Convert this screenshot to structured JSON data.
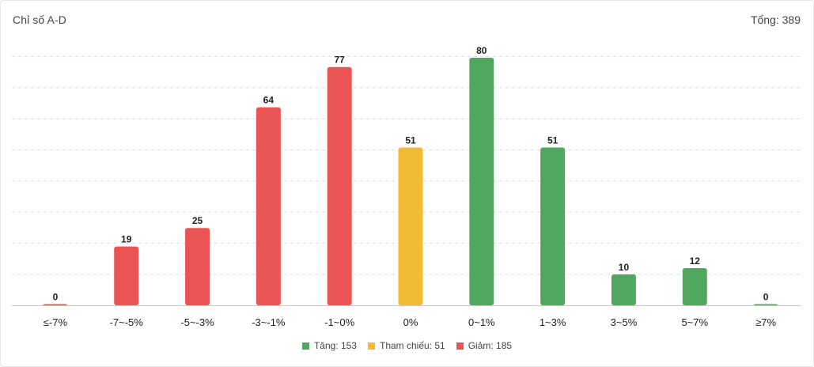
{
  "header": {
    "title": "Chỉ số A-D",
    "total": "Tổng: 389"
  },
  "colors": {
    "up": "#4fa85d",
    "reference": "#f2bb35",
    "down": "#eb5454",
    "grid": "#dedede",
    "axis": "#c8c8c8"
  },
  "legend": [
    {
      "label": "Tăng: 153",
      "color": "#4fa85d"
    },
    {
      "label": "Tham chiếu: 51",
      "color": "#f2bb35"
    },
    {
      "label": "Giảm: 185",
      "color": "#eb5454"
    }
  ],
  "chart_data": {
    "type": "bar",
    "title": "Chỉ số A-D",
    "categories": [
      "≤-7%",
      "-7~-5%",
      "-5~-3%",
      "-3~-1%",
      "-1~0%",
      "0%",
      "0~1%",
      "1~3%",
      "3~5%",
      "5~7%",
      "≥7%"
    ],
    "values": [
      0,
      19,
      25,
      64,
      77,
      51,
      80,
      51,
      10,
      12,
      0
    ],
    "bar_colors": [
      "#eb5454",
      "#eb5454",
      "#eb5454",
      "#eb5454",
      "#eb5454",
      "#f2bb35",
      "#4fa85d",
      "#4fa85d",
      "#4fa85d",
      "#4fa85d",
      "#4fa85d"
    ],
    "ylim": [
      0,
      80
    ],
    "grid": true,
    "legend_position": "bottom-center"
  }
}
